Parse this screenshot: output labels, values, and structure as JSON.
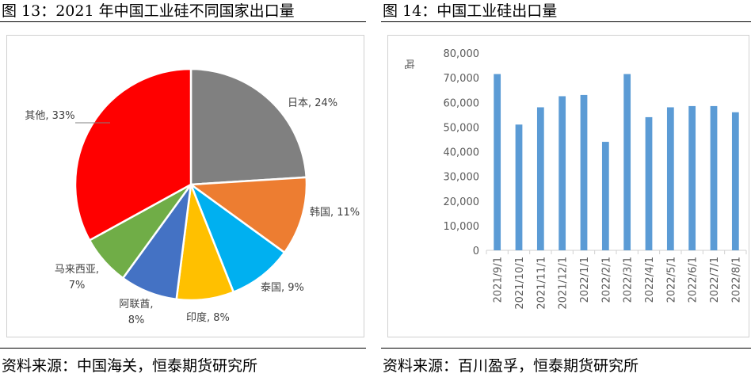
{
  "left": {
    "title": "图 13：2021 年中国工业硅不同国家出口量",
    "source": "资料来源：中国海关，恒泰期货研究所"
  },
  "right": {
    "title": "图 14：中国工业硅出口量",
    "source": "资料来源：百川盈孚，恒泰期货研究所"
  },
  "chart_data": [
    {
      "type": "pie",
      "slices": [
        {
          "label": "日本",
          "value": 24,
          "text": "日本, 24%",
          "color": "#808080"
        },
        {
          "label": "韩国",
          "value": 11,
          "text": "韩国, 11%",
          "color": "#ED7D31"
        },
        {
          "label": "泰国",
          "value": 9,
          "text": "泰国, 9%",
          "color": "#00B0F0"
        },
        {
          "label": "印度",
          "value": 8,
          "text": "印度, 8%",
          "color": "#FFC000"
        },
        {
          "label": "阿联酋",
          "value": 8,
          "text": "阿联酋,\n8%",
          "color": "#4472C4"
        },
        {
          "label": "马来西亚",
          "value": 7,
          "text": "马来西亚,\n7%",
          "color": "#70AD47"
        },
        {
          "label": "其他",
          "value": 33,
          "text": "其他, 33%",
          "color": "#FF0000"
        }
      ]
    },
    {
      "type": "bar",
      "ylabel": "吨",
      "ylim": [
        0,
        80000
      ],
      "yticks": [
        "0",
        "10,000",
        "20,000",
        "30,000",
        "40,000",
        "50,000",
        "60,000",
        "70,000",
        "80,000"
      ],
      "color": "#5B9BD5",
      "categories": [
        "2021/9/1",
        "2021/10/1",
        "2021/11/1",
        "2021/12/1",
        "2022/1/1",
        "2022/2/1",
        "2022/3/1",
        "2022/4/1",
        "2022/5/1",
        "2022/6/1",
        "2022/7/1",
        "2022/8/1"
      ],
      "values": [
        71500,
        51000,
        58000,
        62500,
        63000,
        44000,
        71500,
        54000,
        58000,
        58500,
        58500,
        56000
      ]
    }
  ]
}
